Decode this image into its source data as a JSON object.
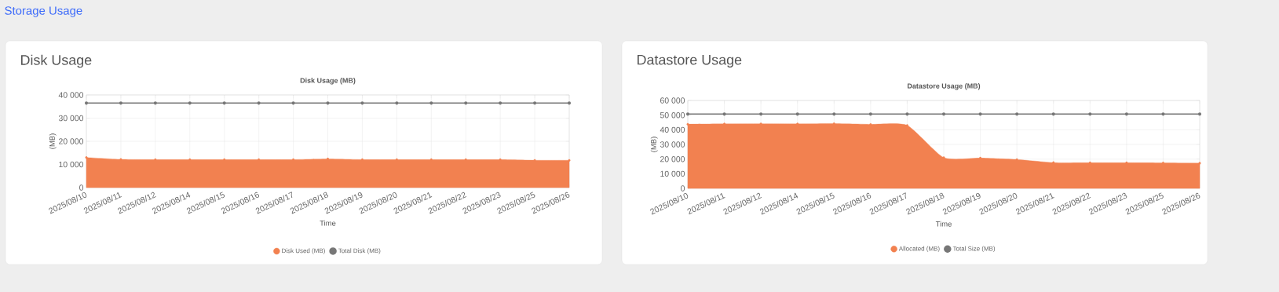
{
  "chart_data": [
    {
      "type": "area",
      "title": "Disk Usage",
      "subtitle": "Disk Usage (MB)",
      "xlabel": "Time",
      "ylabel": "(MB)",
      "annotations": [
        "Storage Usage"
      ],
      "categories": [
        "2025/08/10",
        "2025/08/11",
        "2025/08/12",
        "2025/08/14",
        "2025/08/15",
        "2025/08/16",
        "2025/08/17",
        "2025/08/18",
        "2025/08/19",
        "2025/08/20",
        "2025/08/21",
        "2025/08/22",
        "2025/08/23",
        "2025/08/25",
        "2025/08/26"
      ],
      "series": [
        {
          "name": "Disk Used (MB)",
          "color": "#f28150",
          "values": [
            13000,
            12200,
            12100,
            12100,
            12100,
            12100,
            12100,
            12400,
            12100,
            12100,
            12100,
            12100,
            12100,
            11800,
            11800
          ]
        },
        {
          "name": "Total Disk (MB)",
          "type": "line",
          "color": "#777777",
          "values": [
            36500,
            36500,
            36500,
            36500,
            36500,
            36500,
            36500,
            36500,
            36500,
            36500,
            36500,
            36500,
            36500,
            36500,
            36500
          ]
        }
      ],
      "ylim": [
        0,
        40000
      ],
      "yticks": [
        {
          "value": 0,
          "label": "0"
        },
        {
          "value": 10000,
          "label": "10 000"
        },
        {
          "value": 20000,
          "label": "20 000"
        },
        {
          "value": 30000,
          "label": "30 000"
        },
        {
          "value": 40000,
          "label": "40 000"
        }
      ],
      "grid": true,
      "legend": "bottom",
      "marker": "circle"
    },
    {
      "type": "area",
      "title": "Datastore Usage",
      "subtitle": "Datastore Usage (MB)",
      "xlabel": "Time",
      "ylabel": "(MB)",
      "categories": [
        "2025/08/10",
        "2025/08/11",
        "2025/08/12",
        "2025/08/14",
        "2025/08/15",
        "2025/08/16",
        "2025/08/17",
        "2025/08/18",
        "2025/08/19",
        "2025/08/20",
        "2025/08/21",
        "2025/08/22",
        "2025/08/23",
        "2025/08/25",
        "2025/08/26"
      ],
      "series": [
        {
          "name": "Allocated (MB)",
          "color": "#f28150",
          "values": [
            43800,
            44000,
            44100,
            44000,
            44200,
            43700,
            43000,
            21000,
            20700,
            19700,
            17600,
            17500,
            17500,
            17400,
            17200
          ]
        },
        {
          "name": "Total Size (MB)",
          "type": "line",
          "color": "#777777",
          "values": [
            50700,
            50700,
            50700,
            50700,
            50700,
            50700,
            50700,
            50700,
            50700,
            50700,
            50700,
            50700,
            50700,
            50700,
            50700
          ]
        }
      ],
      "ylim": [
        0,
        60000
      ],
      "yticks": [
        {
          "value": 0,
          "label": "0"
        },
        {
          "value": 10000,
          "label": "10 000"
        },
        {
          "value": 20000,
          "label": "20 000"
        },
        {
          "value": 30000,
          "label": "30 000"
        },
        {
          "value": 40000,
          "label": "40 000"
        },
        {
          "value": 50000,
          "label": "50 000"
        },
        {
          "value": 60000,
          "label": "60 000"
        }
      ],
      "grid": true,
      "legend": "bottom",
      "marker": "circle"
    }
  ]
}
